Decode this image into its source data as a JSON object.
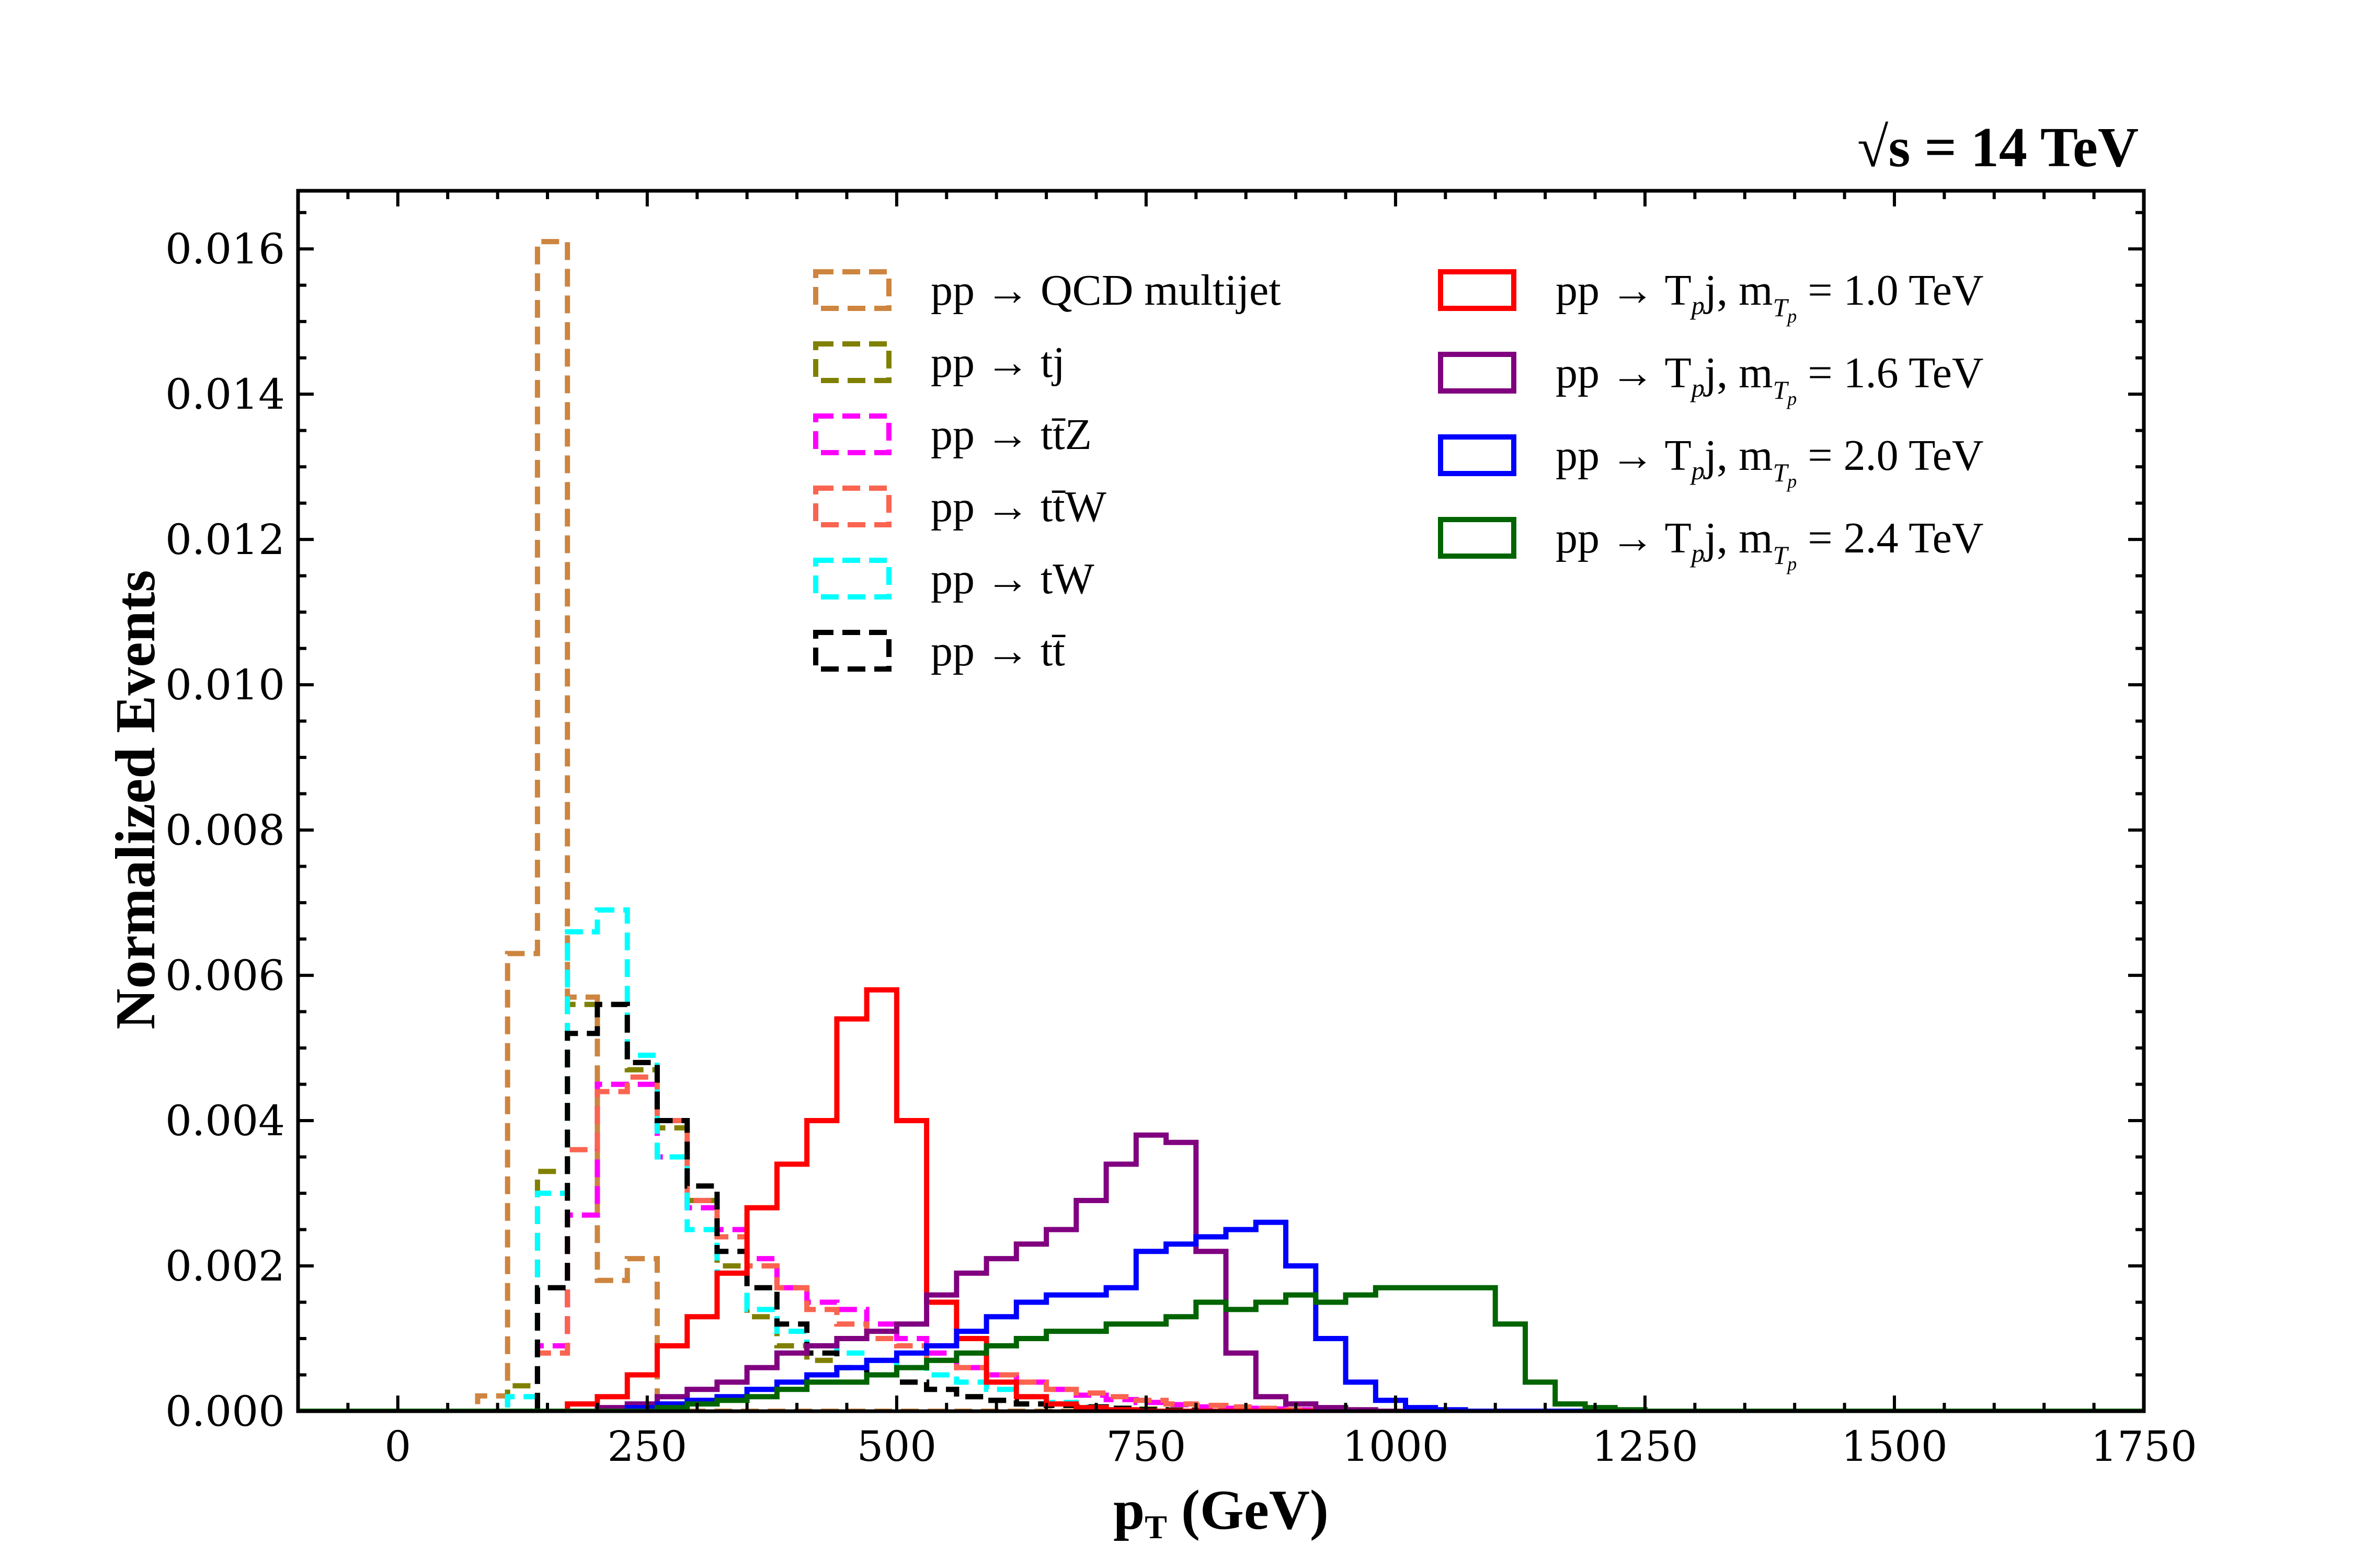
{
  "chart_data": {
    "type": "step",
    "title": "",
    "energy_label": "√s = 14 TeV",
    "xlabel": "p",
    "xlabel_sub": "T",
    "xlabel_unit": " (GeV)",
    "ylabel": "Normalized Events",
    "xlim": [
      -100,
      1750
    ],
    "ylim": [
      0,
      0.0168
    ],
    "xticks": [
      0,
      250,
      500,
      750,
      1000,
      1250,
      1500,
      1750
    ],
    "xtick_labels": [
      "0",
      "250",
      "500",
      "750",
      "1000",
      "1250",
      "1500",
      "1750"
    ],
    "yticks": [
      0,
      0.002,
      0.004,
      0.006,
      0.008,
      0.01,
      0.012,
      0.014,
      0.016
    ],
    "ytick_labels": [
      "0.000",
      "0.002",
      "0.004",
      "0.006",
      "0.008",
      "0.010",
      "0.012",
      "0.014",
      "0.016"
    ],
    "bin_width": 30,
    "x_start": -100,
    "legend_left": [
      "pp → QCD multijet",
      "pp → tj",
      "pp → tt̄Z",
      "pp → tt̄W",
      "pp → tW",
      "pp → tt̄"
    ],
    "legend_right": [
      {
        "reaction": "pp → T",
        "sub": "p",
        "tail": "j, m",
        "msub": "T",
        "msub2": "p",
        "mass": " = 1.0 TeV"
      },
      {
        "reaction": "pp → T",
        "sub": "p",
        "tail": "j, m",
        "msub": "T",
        "msub2": "p",
        "mass": " = 1.6 TeV"
      },
      {
        "reaction": "pp → T",
        "sub": "p",
        "tail": "j, m",
        "msub": "T",
        "msub2": "p",
        "mass": " = 2.0 TeV"
      },
      {
        "reaction": "pp → T",
        "sub": "p",
        "tail": "j, m",
        "msub": "T",
        "msub2": "p",
        "mass": " = 2.4 TeV"
      }
    ],
    "series": [
      {
        "name": "pp → QCD multijet",
        "color": "#cd853f",
        "dashed": true,
        "values": [
          0,
          0,
          0,
          0,
          0,
          0,
          0.00021,
          0.0063,
          0.0161,
          0.0057,
          0.0018,
          0.0021,
          0.0,
          0,
          0,
          0,
          0,
          0,
          0,
          0,
          0,
          0,
          0,
          0,
          0,
          0,
          0,
          0,
          0,
          0,
          0,
          0,
          0,
          0,
          0,
          0,
          0,
          0,
          0,
          0,
          0,
          0,
          0,
          0,
          0,
          0,
          0,
          0,
          0,
          0,
          0,
          0,
          0,
          0,
          0,
          0,
          0,
          0,
          0,
          0,
          0,
          0
        ]
      },
      {
        "name": "pp → tj",
        "color": "#808000",
        "dashed": true,
        "values": [
          0,
          0,
          0,
          0,
          0,
          0,
          0,
          0.00035,
          0.0033,
          0.0056,
          0.0056,
          0.0047,
          0.0039,
          0.0029,
          0.002,
          0.0013,
          0.0009,
          0.0007,
          0.0006,
          0.0005,
          0.0004,
          0.0003,
          0.0002,
          0.00015,
          0.0001,
          8e-05,
          6e-05,
          4e-05,
          3e-05,
          2e-05,
          1e-05,
          0,
          0,
          0,
          0,
          0,
          0,
          0,
          0,
          0,
          0,
          0,
          0,
          0,
          0,
          0,
          0,
          0,
          0,
          0,
          0,
          0,
          0,
          0,
          0,
          0,
          0,
          0,
          0,
          0,
          0,
          0
        ]
      },
      {
        "name": "pp → tt̄Z",
        "color": "#ff00ff",
        "dashed": true,
        "values": [
          0,
          0,
          0,
          0,
          0,
          0,
          0,
          0,
          0.0009,
          0.0027,
          0.0045,
          0.0045,
          0.0035,
          0.0028,
          0.0025,
          0.0021,
          0.0017,
          0.0015,
          0.0014,
          0.0012,
          0.001,
          0.0008,
          0.0006,
          0.0005,
          0.0004,
          0.0003,
          0.00022,
          0.00016,
          0.00012,
          9e-05,
          6e-05,
          4e-05,
          3e-05,
          2e-05,
          1e-05,
          0,
          0,
          0,
          0,
          0,
          0,
          0,
          0,
          0,
          0,
          0,
          0,
          0,
          0,
          0,
          0,
          0,
          0,
          0,
          0,
          0,
          0,
          0,
          0,
          0,
          0,
          0
        ]
      },
      {
        "name": "pp → tt̄W",
        "color": "#fa6450",
        "dashed": true,
        "values": [
          0,
          0,
          0,
          0,
          0,
          0,
          0,
          0,
          0.0008,
          0.0036,
          0.0044,
          0.0046,
          0.004,
          0.0029,
          0.0024,
          0.002,
          0.0017,
          0.0014,
          0.0012,
          0.001,
          0.0009,
          0.0007,
          0.0006,
          0.0005,
          0.0004,
          0.0003,
          0.00025,
          0.0002,
          0.00015,
          0.0001,
          8e-05,
          6e-05,
          4e-05,
          2e-05,
          1e-05,
          0,
          0,
          0,
          0,
          0,
          0,
          0,
          0,
          0,
          0,
          0,
          0,
          0,
          0,
          0,
          0,
          0,
          0,
          0,
          0,
          0,
          0,
          0,
          0,
          0,
          0,
          0
        ]
      },
      {
        "name": "pp → tW",
        "color": "#00ffff",
        "dashed": true,
        "values": [
          0,
          0,
          0,
          0,
          0,
          0,
          0,
          0.0002,
          0.003,
          0.0066,
          0.0069,
          0.0049,
          0.0035,
          0.0025,
          0.0019,
          0.0014,
          0.0011,
          0.0009,
          0.0008,
          0.0007,
          0.0006,
          0.0005,
          0.0004,
          0.0003,
          0.0002,
          0.00012,
          6e-05,
          2e-05,
          0,
          0,
          0,
          0,
          0,
          0,
          0,
          0,
          0,
          0,
          0,
          0,
          0,
          0,
          0,
          0,
          0,
          0,
          0,
          0,
          0,
          0,
          0,
          0,
          0,
          0,
          0,
          0,
          0,
          0,
          0,
          0,
          0,
          0
        ]
      },
      {
        "name": "pp → tt̄",
        "color": "#000000",
        "dashed": true,
        "values": [
          0,
          0,
          0,
          0,
          0,
          0,
          0,
          0,
          0.0017,
          0.0052,
          0.0056,
          0.0048,
          0.004,
          0.0031,
          0.0022,
          0.0017,
          0.0012,
          0.0008,
          0.0006,
          0.0005,
          0.0004,
          0.0003,
          0.0002,
          0.00015,
          0.0001,
          8e-05,
          6e-05,
          4e-05,
          2e-05,
          1e-05,
          0,
          0,
          0,
          0,
          0,
          0,
          0,
          0,
          0,
          0,
          0,
          0,
          0,
          0,
          0,
          0,
          0,
          0,
          0,
          0,
          0,
          0,
          0,
          0,
          0,
          0,
          0,
          0,
          0,
          0,
          0,
          0
        ]
      },
      {
        "name": "pp → Tpj, mTp = 1.0 TeV",
        "color": "#ff0000",
        "dashed": false,
        "values": [
          0,
          0,
          0,
          0,
          0,
          0,
          0,
          0,
          0,
          0.0001,
          0.0002,
          0.0005,
          0.0009,
          0.0013,
          0.0019,
          0.0028,
          0.0034,
          0.004,
          0.0054,
          0.0058,
          0.004,
          0.0015,
          0.001,
          0.0004,
          0.0002,
          0.0001,
          5e-05,
          2e-05,
          0,
          0,
          0,
          0,
          0,
          0,
          0,
          0,
          0,
          0,
          0,
          0,
          0,
          0,
          0,
          0,
          0,
          0,
          0,
          0,
          0,
          0,
          0,
          0,
          0,
          0,
          0,
          0,
          0,
          0,
          0,
          0,
          0,
          0
        ]
      },
      {
        "name": "pp → Tpj, mTp = 1.6 TeV",
        "color": "#800080",
        "dashed": false,
        "values": [
          0,
          0,
          0,
          0,
          0,
          0,
          0,
          0,
          0,
          0,
          5e-05,
          0.0001,
          0.0002,
          0.0003,
          0.0004,
          0.0006,
          0.0008,
          0.0009,
          0.001,
          0.0011,
          0.0012,
          0.0016,
          0.0019,
          0.0021,
          0.0023,
          0.0025,
          0.0029,
          0.0034,
          0.0038,
          0.0037,
          0.0022,
          0.0008,
          0.0002,
          0.0001,
          5e-05,
          2e-05,
          0,
          0,
          0,
          0,
          0,
          0,
          0,
          0,
          0,
          0,
          0,
          0,
          0,
          0,
          0,
          0,
          0,
          0,
          0,
          0,
          0,
          0,
          0,
          0,
          0,
          0
        ]
      },
      {
        "name": "pp → Tpj, mTp = 2.0 TeV",
        "color": "#0000ff",
        "dashed": false,
        "values": [
          0,
          0,
          0,
          0,
          0,
          0,
          0,
          0,
          0,
          0,
          0,
          5e-05,
          0.0001,
          0.00015,
          0.0002,
          0.0003,
          0.0004,
          0.0005,
          0.0006,
          0.0007,
          0.0008,
          0.0009,
          0.0011,
          0.0013,
          0.0015,
          0.0016,
          0.0016,
          0.0017,
          0.0022,
          0.0023,
          0.0024,
          0.0025,
          0.0026,
          0.002,
          0.001,
          0.0004,
          0.00015,
          5e-05,
          2e-05,
          0,
          0,
          0,
          0,
          0,
          0,
          0,
          0,
          0,
          0,
          0,
          0,
          0,
          0,
          0,
          0,
          0,
          0,
          0,
          0,
          0,
          0,
          0
        ]
      },
      {
        "name": "pp → Tpj, mTp = 2.4 TeV",
        "color": "#006400",
        "dashed": false,
        "values": [
          0,
          0,
          0,
          0,
          0,
          0,
          0,
          0,
          0,
          0,
          0,
          0,
          5e-05,
          0.0001,
          0.00015,
          0.0002,
          0.0003,
          0.0004,
          0.0004,
          0.0005,
          0.0006,
          0.0007,
          0.0008,
          0.0009,
          0.001,
          0.0011,
          0.0011,
          0.0012,
          0.0012,
          0.0013,
          0.0015,
          0.0014,
          0.0015,
          0.0016,
          0.0015,
          0.0016,
          0.0017,
          0.0017,
          0.0017,
          0.0017,
          0.0012,
          0.0004,
          0.0001,
          5e-05,
          2e-05,
          0,
          0,
          0,
          0,
          0,
          0,
          0,
          0,
          0,
          0,
          0,
          0,
          0,
          0,
          0,
          0,
          0
        ]
      }
    ]
  }
}
